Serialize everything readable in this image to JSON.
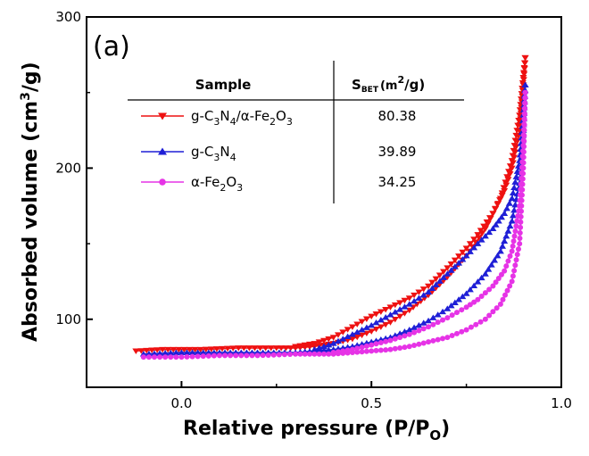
{
  "chart_data": {
    "type": "line",
    "panel_label": "(a)",
    "xlabel": "Relative pressure (P/P",
    "xlabel_sub": "O",
    "xlabel_close": ")",
    "ylabel": "Absorbed volume (cm",
    "ylabel_sup": "3",
    "ylabel_close": "/g)",
    "xlim": [
      -0.25,
      1.0
    ],
    "ylim": [
      55,
      300
    ],
    "x_ticks": [
      0.0,
      0.5,
      1.0
    ],
    "x_tick_labels": [
      "0.0",
      "0.5",
      "1.0"
    ],
    "y_ticks": [
      100,
      200,
      300
    ],
    "y_tick_labels": [
      "100",
      "200",
      "300"
    ],
    "legend_position": "top-left (inside table)",
    "table": {
      "col1_header": "Sample",
      "col2_header_main": "S",
      "col2_header_sub": "BET",
      "col2_header_unit": "(m",
      "col2_header_unit_sup": "2",
      "col2_header_unit_end": "/g)",
      "rows": [
        {
          "label_parts": [
            [
              "g-C",
              "normal"
            ],
            [
              "3",
              "sub"
            ],
            [
              "N",
              "normal"
            ],
            [
              "4",
              "sub"
            ],
            [
              "/α-Fe",
              "normal"
            ],
            [
              "2",
              "sub"
            ],
            [
              "O",
              "normal"
            ],
            [
              "3",
              "sub"
            ]
          ],
          "value": "80.38"
        },
        {
          "label_parts": [
            [
              "g-C",
              "normal"
            ],
            [
              "3",
              "sub"
            ],
            [
              "N",
              "normal"
            ],
            [
              "4",
              "sub"
            ]
          ],
          "value": "39.89"
        },
        {
          "label_parts": [
            [
              "α-Fe",
              "normal"
            ],
            [
              "2",
              "sub"
            ],
            [
              "O",
              "normal"
            ],
            [
              "3",
              "sub"
            ]
          ],
          "value": "34.25"
        }
      ]
    },
    "series": [
      {
        "name": "g-C3N4/α-Fe2O3",
        "color": "#ee1111",
        "marker": "triangle-down",
        "adsorption": [
          [
            -0.12,
            79
          ],
          [
            -0.05,
            80
          ],
          [
            0.05,
            80
          ],
          [
            0.15,
            81
          ],
          [
            0.25,
            81
          ],
          [
            0.3,
            81
          ],
          [
            0.35,
            82
          ],
          [
            0.4,
            84
          ],
          [
            0.45,
            87
          ],
          [
            0.5,
            92
          ],
          [
            0.55,
            98
          ],
          [
            0.6,
            106
          ],
          [
            0.65,
            116
          ],
          [
            0.7,
            128
          ],
          [
            0.75,
            142
          ],
          [
            0.8,
            160
          ],
          [
            0.84,
            180
          ],
          [
            0.87,
            205
          ],
          [
            0.89,
            235
          ],
          [
            0.9,
            260
          ],
          [
            0.905,
            273
          ]
        ],
        "desorption": [
          [
            0.905,
            273
          ],
          [
            0.9,
            255
          ],
          [
            0.89,
            225
          ],
          [
            0.87,
            200
          ],
          [
            0.85,
            185
          ],
          [
            0.82,
            170
          ],
          [
            0.78,
            156
          ],
          [
            0.75,
            147
          ],
          [
            0.7,
            134
          ],
          [
            0.65,
            122
          ],
          [
            0.6,
            114
          ],
          [
            0.55,
            108
          ],
          [
            0.5,
            102
          ],
          [
            0.45,
            95
          ],
          [
            0.4,
            88
          ],
          [
            0.35,
            84
          ],
          [
            0.3,
            82
          ]
        ]
      },
      {
        "name": "g-C3N4",
        "color": "#1f1fd6",
        "marker": "triangle-up",
        "adsorption": [
          [
            -0.1,
            77
          ],
          [
            0.0,
            78
          ],
          [
            0.1,
            78
          ],
          [
            0.2,
            78
          ],
          [
            0.3,
            78
          ],
          [
            0.35,
            79
          ],
          [
            0.4,
            80
          ],
          [
            0.45,
            82
          ],
          [
            0.5,
            85
          ],
          [
            0.55,
            88
          ],
          [
            0.6,
            93
          ],
          [
            0.65,
            99
          ],
          [
            0.7,
            107
          ],
          [
            0.75,
            117
          ],
          [
            0.8,
            130
          ],
          [
            0.84,
            145
          ],
          [
            0.87,
            165
          ],
          [
            0.89,
            190
          ],
          [
            0.9,
            225
          ],
          [
            0.905,
            255
          ]
        ],
        "desorption": [
          [
            0.905,
            255
          ],
          [
            0.9,
            235
          ],
          [
            0.89,
            205
          ],
          [
            0.87,
            180
          ],
          [
            0.85,
            170
          ],
          [
            0.82,
            160
          ],
          [
            0.78,
            150
          ],
          [
            0.75,
            142
          ],
          [
            0.7,
            130
          ],
          [
            0.65,
            118
          ],
          [
            0.6,
            110
          ],
          [
            0.55,
            103
          ],
          [
            0.5,
            96
          ],
          [
            0.45,
            90
          ],
          [
            0.4,
            84
          ],
          [
            0.35,
            80
          ]
        ]
      },
      {
        "name": "α-Fe2O3",
        "color": "#e633e6",
        "marker": "circle",
        "adsorption": [
          [
            -0.1,
            75
          ],
          [
            0.0,
            75
          ],
          [
            0.1,
            76
          ],
          [
            0.2,
            76
          ],
          [
            0.3,
            77
          ],
          [
            0.35,
            77
          ],
          [
            0.4,
            77
          ],
          [
            0.45,
            78
          ],
          [
            0.5,
            79
          ],
          [
            0.55,
            80
          ],
          [
            0.6,
            82
          ],
          [
            0.65,
            85
          ],
          [
            0.7,
            88
          ],
          [
            0.75,
            93
          ],
          [
            0.8,
            100
          ],
          [
            0.84,
            110
          ],
          [
            0.87,
            125
          ],
          [
            0.89,
            150
          ],
          [
            0.9,
            200
          ],
          [
            0.905,
            250
          ]
        ],
        "desorption": [
          [
            0.905,
            250
          ],
          [
            0.9,
            215
          ],
          [
            0.89,
            175
          ],
          [
            0.87,
            145
          ],
          [
            0.85,
            132
          ],
          [
            0.82,
            122
          ],
          [
            0.78,
            113
          ],
          [
            0.75,
            108
          ],
          [
            0.7,
            101
          ],
          [
            0.65,
            95
          ],
          [
            0.6,
            90
          ],
          [
            0.55,
            86
          ],
          [
            0.5,
            83
          ],
          [
            0.45,
            80
          ],
          [
            0.4,
            78
          ]
        ]
      }
    ]
  }
}
